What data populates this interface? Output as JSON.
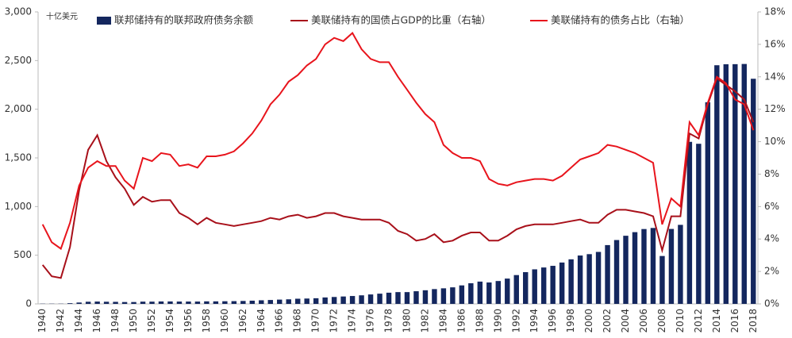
{
  "chart_data": {
    "type": "bar_line",
    "y_unit_label": "十亿美元",
    "categories": [
      "1940",
      null,
      "1942",
      null,
      "1944",
      null,
      "1946",
      null,
      "1948",
      null,
      "1950",
      null,
      "1952",
      null,
      "1954",
      null,
      "1956",
      null,
      "1958",
      null,
      "1960",
      null,
      "1962",
      null,
      "1964",
      null,
      "1966",
      null,
      "1968",
      null,
      "1970",
      null,
      "1972",
      null,
      "1974",
      null,
      "1976",
      null,
      "1978",
      null,
      "1980",
      null,
      "1982",
      null,
      "1984",
      null,
      "1986",
      null,
      "1988",
      null,
      "1990",
      null,
      "1992",
      null,
      "1994",
      null,
      "1996",
      null,
      "1998",
      null,
      "2000",
      null,
      "2002",
      null,
      "2004",
      null,
      "2006",
      null,
      "2008",
      null,
      "2010",
      null,
      "2012",
      null,
      "2014",
      null,
      "2016",
      null,
      "2018"
    ],
    "series": [
      {
        "name": "联邦储持有的联邦政府债务余额",
        "color": "#14275e",
        "kind": "bar",
        "values": [
          2,
          2,
          2,
          7,
          14,
          22,
          24,
          22,
          21,
          19,
          19,
          23,
          23,
          25,
          25,
          24,
          24,
          24,
          26,
          26,
          27,
          28,
          30,
          33,
          37,
          40,
          44,
          47,
          53,
          55,
          58,
          66,
          71,
          76,
          81,
          88,
          97,
          105,
          115,
          121,
          121,
          130,
          140,
          152,
          160,
          170,
          190,
          212,
          229,
          220,
          235,
          260,
          296,
          326,
          355,
          374,
          391,
          425,
          458,
          497,
          511,
          534,
          604,
          656,
          700,
          737,
          769,
          780,
          492,
          770,
          812,
          1665,
          1645,
          2072,
          2452,
          2462,
          2463,
          2465,
          2313
        ]
      },
      {
        "name": "美联储持有的国债占GDP的比重（右轴）",
        "color": "#a8101a",
        "kind": "line",
        "axis": "y2",
        "values": [
          2.4,
          1.7,
          1.6,
          3.5,
          7,
          9.5,
          10.4,
          8.8,
          7.8,
          7.1,
          6.1,
          6.6,
          6.3,
          6.4,
          6.4,
          5.6,
          5.3,
          4.9,
          5.3,
          5.0,
          4.9,
          4.8,
          4.9,
          5.0,
          5.1,
          5.3,
          5.2,
          5.4,
          5.5,
          5.3,
          5.4,
          5.6,
          5.6,
          5.4,
          5.3,
          5.2,
          5.2,
          5.2,
          5.0,
          4.5,
          4.3,
          3.9,
          4.0,
          4.3,
          3.8,
          3.9,
          4.2,
          4.4,
          4.4,
          3.9,
          3.9,
          4.2,
          4.6,
          4.8,
          4.9,
          4.9,
          4.9,
          5.0,
          5.1,
          5.2,
          5.0,
          5.0,
          5.5,
          5.8,
          5.8,
          5.7,
          5.6,
          5.4,
          3.3,
          5.4,
          5.4,
          10.5,
          10.2,
          12.3,
          13.9,
          13.5,
          13.1,
          12.6,
          11.2
        ]
      },
      {
        "name": "美联储持有的债务占比（右轴）",
        "color": "#e8141c",
        "kind": "line",
        "axis": "y2",
        "values": [
          4.9,
          3.8,
          3.4,
          5.0,
          7.3,
          8.4,
          8.8,
          8.5,
          8.5,
          7.6,
          7.1,
          9.0,
          8.8,
          9.3,
          9.2,
          8.5,
          8.6,
          8.4,
          9.1,
          9.1,
          9.2,
          9.4,
          9.9,
          10.5,
          11.3,
          12.3,
          12.9,
          13.7,
          14.1,
          14.7,
          15.1,
          16.0,
          16.4,
          16.2,
          16.7,
          15.7,
          15.1,
          14.9,
          14.9,
          14.0,
          13.2,
          12.4,
          11.7,
          11.2,
          9.8,
          9.3,
          9.0,
          9.0,
          8.8,
          7.7,
          7.4,
          7.3,
          7.5,
          7.6,
          7.7,
          7.7,
          7.6,
          7.9,
          8.4,
          8.9,
          9.1,
          9.3,
          9.8,
          9.7,
          9.5,
          9.3,
          9.0,
          8.7,
          4.9,
          6.5,
          6.0,
          11.2,
          10.4,
          12.4,
          14.0,
          13.6,
          12.6,
          12.3,
          10.7
        ]
      }
    ],
    "ylim": [
      0,
      3000
    ],
    "yticks": [
      0,
      500,
      {
        "value": 1000,
        "label": "1,000"
      },
      {
        "value": 1500,
        "label": "1,500"
      },
      {
        "value": 2000,
        "label": "2,000"
      },
      {
        "value": 2500,
        "label": "2,500"
      },
      {
        "value": 3000,
        "label": "3,000"
      }
    ],
    "y2lim": [
      0,
      18
    ],
    "y2ticks": [
      {
        "value": 0,
        "label": "0%"
      },
      {
        "value": 2,
        "label": "2%"
      },
      {
        "value": 4,
        "label": "4%"
      },
      {
        "value": 6,
        "label": "6%"
      },
      {
        "value": 8,
        "label": "8%"
      },
      {
        "value": 10,
        "label": "10%"
      },
      {
        "value": 12,
        "label": "12%"
      },
      {
        "value": 14,
        "label": "14%"
      },
      {
        "value": 16,
        "label": "16%"
      },
      {
        "value": 18,
        "label": "18%"
      }
    ],
    "grid": false,
    "legend": "top"
  }
}
